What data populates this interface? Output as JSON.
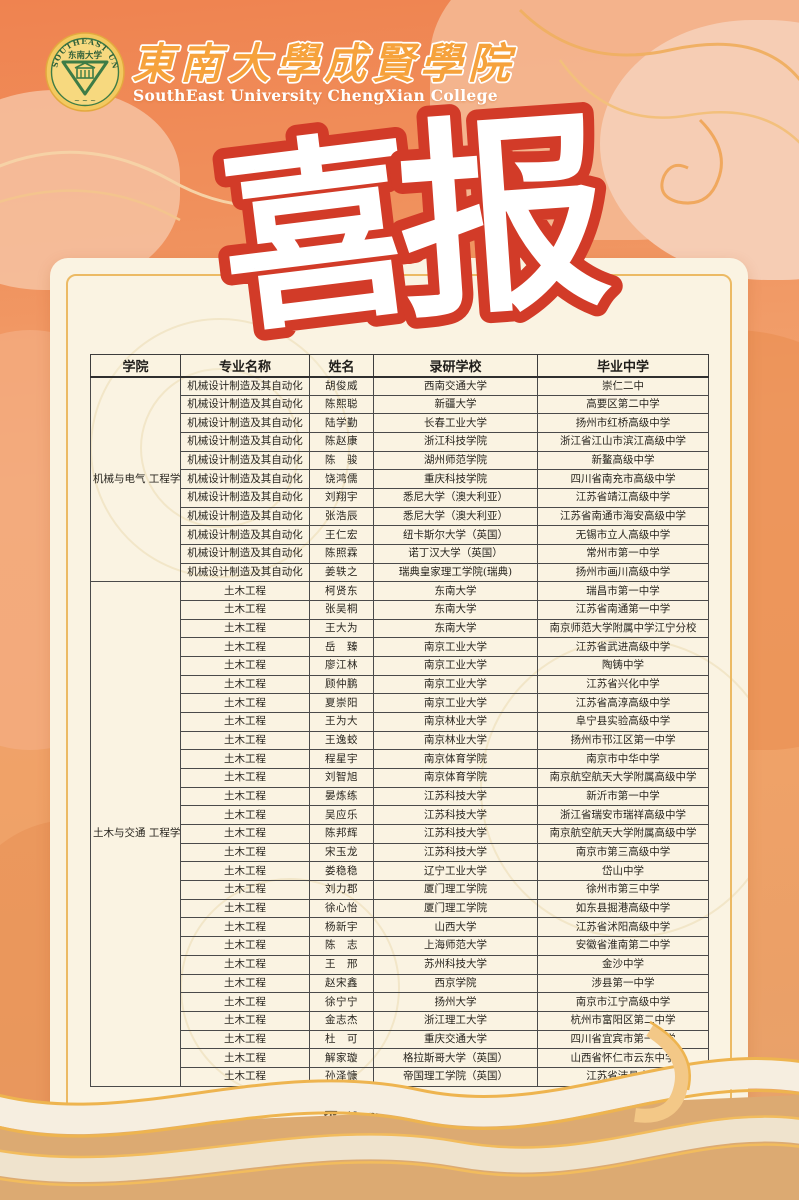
{
  "banner": {
    "college_name_zh": "東南大學成賢學院",
    "college_name_en": "SouthEast University ChengXian College",
    "logo": {
      "icon": "southeast-university-seal",
      "ring_text": "SOUTHEAST UNIVERSITY",
      "center_text": "东南大学"
    }
  },
  "title": {
    "text": "喜报",
    "char1": "喜",
    "char2": "报"
  },
  "colors": {
    "title_red": "#d23b28",
    "gold_line": "#eeb45a",
    "card_cream": "#faf3e2",
    "logo_gold": "#f3c95f",
    "logo_green": "#3e7c46",
    "banner_orange": "#f6a23c"
  },
  "table": {
    "headers": [
      "学院",
      "专业名称",
      "姓名",
      "录研学校",
      "毕业中学"
    ],
    "groups": [
      {
        "college": "机械与电气\n工程学院",
        "rows": [
          {
            "major": "机械设计制造及其自动化",
            "name": "胡俊威",
            "school": "西南交通大学",
            "high_school": "崇仁二中"
          },
          {
            "major": "机械设计制造及其自动化",
            "name": "陈熙聪",
            "school": "新疆大学",
            "high_school": "高要区第二中学"
          },
          {
            "major": "机械设计制造及其自动化",
            "name": "陆学勤",
            "school": "长春工业大学",
            "high_school": "扬州市红桥高级中学"
          },
          {
            "major": "机械设计制造及其自动化",
            "name": "陈赵康",
            "school": "浙江科技学院",
            "high_school": "浙江省江山市滨江高级中学"
          },
          {
            "major": "机械设计制造及其自动化",
            "name": "陈　骏",
            "school": "湖州师范学院",
            "high_school": "新鳌高级中学"
          },
          {
            "major": "机械设计制造及其自动化",
            "name": "饶鸿儒",
            "school": "重庆科技学院",
            "high_school": "四川省南充市高级中学"
          },
          {
            "major": "机械设计制造及其自动化",
            "name": "刘翔宇",
            "school": "悉尼大学（澳大利亚）",
            "high_school": "江苏省靖江高级中学"
          },
          {
            "major": "机械设计制造及其自动化",
            "name": "张浩辰",
            "school": "悉尼大学（澳大利亚）",
            "high_school": "江苏省南通市海安高级中学"
          },
          {
            "major": "机械设计制造及其自动化",
            "name": "王仁宏",
            "school": "纽卡斯尔大学（英国）",
            "high_school": "无锡市立人高级中学"
          },
          {
            "major": "机械设计制造及其自动化",
            "name": "陈照霖",
            "school": "诺丁汉大学（英国）",
            "high_school": "常州市第一中学"
          },
          {
            "major": "机械设计制造及其自动化",
            "name": "姜轶之",
            "school": "瑞典皇家理工学院(瑞典)",
            "high_school": "扬州市画川高级中学"
          }
        ]
      },
      {
        "college": "土木与交通\n工程学院",
        "rows": [
          {
            "major": "土木工程",
            "name": "柯贤东",
            "school": "东南大学",
            "high_school": "瑞昌市第一中学"
          },
          {
            "major": "土木工程",
            "name": "张吴桐",
            "school": "东南大学",
            "high_school": "江苏省南通第一中学"
          },
          {
            "major": "土木工程",
            "name": "王大为",
            "school": "东南大学",
            "high_school": "南京师范大学附属中学江宁分校"
          },
          {
            "major": "土木工程",
            "name": "岳　臻",
            "school": "南京工业大学",
            "high_school": "江苏省武进高级中学"
          },
          {
            "major": "土木工程",
            "name": "廖江林",
            "school": "南京工业大学",
            "high_school": "陶铸中学"
          },
          {
            "major": "土木工程",
            "name": "顾仲鹏",
            "school": "南京工业大学",
            "high_school": "江苏省兴化中学"
          },
          {
            "major": "土木工程",
            "name": "夏崇阳",
            "school": "南京工业大学",
            "high_school": "江苏省高淳高级中学"
          },
          {
            "major": "土木工程",
            "name": "王为大",
            "school": "南京林业大学",
            "high_school": "阜宁县实验高级中学"
          },
          {
            "major": "土木工程",
            "name": "王逸蛟",
            "school": "南京林业大学",
            "high_school": "扬州市邗江区第一中学"
          },
          {
            "major": "土木工程",
            "name": "程星宇",
            "school": "南京体育学院",
            "high_school": "南京市中华中学"
          },
          {
            "major": "土木工程",
            "name": "刘智旭",
            "school": "南京体育学院",
            "high_school": "南京航空航天大学附属高级中学"
          },
          {
            "major": "土木工程",
            "name": "晏炼练",
            "school": "江苏科技大学",
            "high_school": "新沂市第一中学"
          },
          {
            "major": "土木工程",
            "name": "吴应乐",
            "school": "江苏科技大学",
            "high_school": "浙江省瑞安市瑞祥高级中学"
          },
          {
            "major": "土木工程",
            "name": "陈邦辉",
            "school": "江苏科技大学",
            "high_school": "南京航空航天大学附属高级中学"
          },
          {
            "major": "土木工程",
            "name": "宋玉龙",
            "school": "江苏科技大学",
            "high_school": "南京市第三高级中学"
          },
          {
            "major": "土木工程",
            "name": "娄稳稳",
            "school": "辽宁工业大学",
            "high_school": "岱山中学"
          },
          {
            "major": "土木工程",
            "name": "刘力郡",
            "school": "厦门理工学院",
            "high_school": "徐州市第三中学"
          },
          {
            "major": "土木工程",
            "name": "徐心怡",
            "school": "厦门理工学院",
            "high_school": "如东县掘港高级中学"
          },
          {
            "major": "土木工程",
            "name": "杨新宇",
            "school": "山西大学",
            "high_school": "江苏省沭阳高级中学"
          },
          {
            "major": "土木工程",
            "name": "陈　志",
            "school": "上海师范大学",
            "high_school": "安徽省淮南第二中学"
          },
          {
            "major": "土木工程",
            "name": "王　邢",
            "school": "苏州科技大学",
            "high_school": "金沙中学"
          },
          {
            "major": "土木工程",
            "name": "赵宋鑫",
            "school": "西京学院",
            "high_school": "涉县第一中学"
          },
          {
            "major": "土木工程",
            "name": "徐宁宁",
            "school": "扬州大学",
            "high_school": "南京市江宁高级中学"
          },
          {
            "major": "土木工程",
            "name": "金志杰",
            "school": "浙江理工大学",
            "high_school": "杭州市富阳区第二中学"
          },
          {
            "major": "土木工程",
            "name": "杜　可",
            "school": "重庆交通大学",
            "high_school": "四川省宜宾市第一中学"
          },
          {
            "major": "土木工程",
            "name": "解家璇",
            "school": "格拉斯哥大学（英国）",
            "high_school": "山西省怀仁市云东中学"
          },
          {
            "major": "土木工程",
            "name": "孙泽慷",
            "school": "帝国理工学院（英国）",
            "high_school": "江苏省沛县中学"
          }
        ]
      }
    ]
  },
  "footer": {
    "page_text": "第 5 页　共 10 页"
  }
}
